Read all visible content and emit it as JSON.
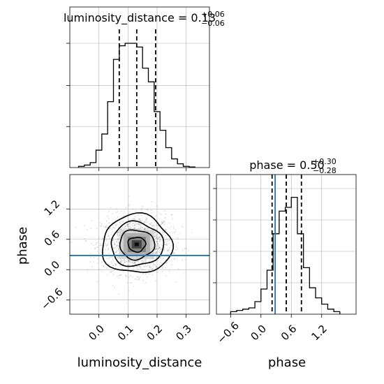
{
  "chart_data": {
    "type": "corner",
    "parameters": [
      "luminosity_distance",
      "phase"
    ],
    "truth": {
      "phase": 0.28
    },
    "truth_color": "#1f77b4",
    "grid": true,
    "panels": [
      {
        "name": "luminosity_distance",
        "type": "histogram",
        "title_prefix": "luminosity_distance = ",
        "title_value": "0.13",
        "title_plus": "+0.06",
        "title_minus": "−0.06",
        "xlim": [
          -0.1,
          0.38
        ],
        "ylim": [
          0,
          1.0
        ],
        "quantiles": [
          0.07,
          0.13,
          0.195
        ],
        "bins": [
          {
            "x0": -0.07,
            "x1": -0.05,
            "v": 0.01
          },
          {
            "x0": -0.05,
            "x1": -0.03,
            "v": 0.02
          },
          {
            "x0": -0.03,
            "x1": -0.01,
            "v": 0.04
          },
          {
            "x0": -0.01,
            "x1": 0.01,
            "v": 0.14
          },
          {
            "x0": 0.01,
            "x1": 0.03,
            "v": 0.27
          },
          {
            "x0": 0.03,
            "x1": 0.05,
            "v": 0.53
          },
          {
            "x0": 0.05,
            "x1": 0.07,
            "v": 0.87
          },
          {
            "x0": 0.07,
            "x1": 0.09,
            "v": 0.98
          },
          {
            "x0": 0.09,
            "x1": 0.11,
            "v": 1.0
          },
          {
            "x0": 0.11,
            "x1": 0.13,
            "v": 1.0
          },
          {
            "x0": 0.13,
            "x1": 0.15,
            "v": 0.97
          },
          {
            "x0": 0.15,
            "x1": 0.17,
            "v": 0.8
          },
          {
            "x0": 0.17,
            "x1": 0.19,
            "v": 0.69
          },
          {
            "x0": 0.19,
            "x1": 0.21,
            "v": 0.45
          },
          {
            "x0": 0.21,
            "x1": 0.23,
            "v": 0.3
          },
          {
            "x0": 0.23,
            "x1": 0.25,
            "v": 0.16
          },
          {
            "x0": 0.25,
            "x1": 0.27,
            "v": 0.07
          },
          {
            "x0": 0.27,
            "x1": 0.29,
            "v": 0.03
          },
          {
            "x0": 0.29,
            "x1": 0.31,
            "v": 0.01
          },
          {
            "x0": 0.31,
            "x1": 0.33,
            "v": 0.005
          }
        ]
      },
      {
        "name": "phase",
        "type": "histogram",
        "title_prefix": "phase = ",
        "title_value": "0.50",
        "title_plus": "+0.30",
        "title_minus": "−0.28",
        "xlim": [
          -0.88,
          1.88
        ],
        "ylim": [
          0,
          1.0
        ],
        "xticks": [
          -0.6,
          0.0,
          0.6,
          1.2
        ],
        "xtick_labels": [
          "−0.6",
          "0.0",
          "0.6",
          "1.2"
        ],
        "xlabel": "phase",
        "quantiles": [
          0.22,
          0.5,
          0.8
        ],
        "bins": [
          {
            "x0": -0.6,
            "x1": -0.48,
            "v": 0.02
          },
          {
            "x0": -0.48,
            "x1": -0.36,
            "v": 0.03
          },
          {
            "x0": -0.36,
            "x1": -0.24,
            "v": 0.04
          },
          {
            "x0": -0.24,
            "x1": -0.12,
            "v": 0.05
          },
          {
            "x0": -0.12,
            "x1": 0.0,
            "v": 0.1
          },
          {
            "x0": 0.0,
            "x1": 0.12,
            "v": 0.2
          },
          {
            "x0": 0.12,
            "x1": 0.24,
            "v": 0.35
          },
          {
            "x0": 0.24,
            "x1": 0.36,
            "v": 0.64
          },
          {
            "x0": 0.36,
            "x1": 0.48,
            "v": 0.82
          },
          {
            "x0": 0.48,
            "x1": 0.6,
            "v": 0.85
          },
          {
            "x0": 0.6,
            "x1": 0.72,
            "v": 0.93
          },
          {
            "x0": 0.72,
            "x1": 0.84,
            "v": 0.64
          },
          {
            "x0": 0.84,
            "x1": 0.96,
            "v": 0.37
          },
          {
            "x0": 0.96,
            "x1": 1.08,
            "v": 0.21
          },
          {
            "x0": 1.08,
            "x1": 1.2,
            "v": 0.13
          },
          {
            "x0": 1.2,
            "x1": 1.32,
            "v": 0.08
          },
          {
            "x0": 1.32,
            "x1": 1.44,
            "v": 0.04
          },
          {
            "x0": 1.44,
            "x1": 1.56,
            "v": 0.02
          }
        ]
      },
      {
        "name": "luminosity_distance-vs-phase",
        "type": "2d-density",
        "xlim": [
          -0.1,
          0.38
        ],
        "ylim": [
          -0.88,
          1.88
        ],
        "xticks": [
          0.0,
          0.1,
          0.2,
          0.3
        ],
        "xtick_labels": [
          "0.0",
          "0.1",
          "0.2",
          "0.3"
        ],
        "yticks": [
          -0.6,
          0.0,
          0.6,
          1.2
        ],
        "ytick_labels": [
          "−0.6",
          "0.0",
          "0.6",
          "1.2"
        ],
        "xlabel": "luminosity_distance",
        "ylabel": "phase",
        "center": [
          0.13,
          0.5
        ],
        "sigma": [
          0.06,
          0.29
        ],
        "contour_levels": [
          0.118,
          0.393,
          0.675,
          0.865
        ]
      }
    ]
  }
}
